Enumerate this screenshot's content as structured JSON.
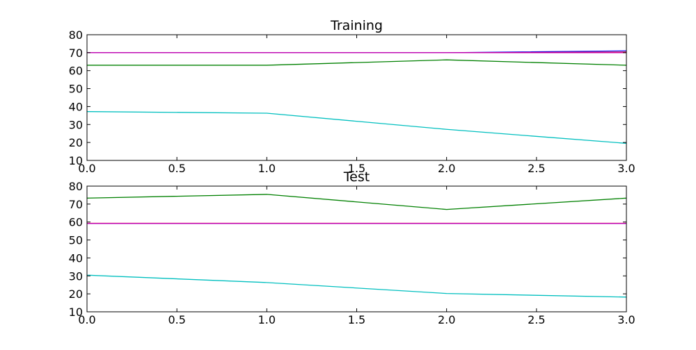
{
  "chart_data": [
    {
      "type": "line",
      "title": "Training",
      "xlabel": "",
      "ylabel": "",
      "xlim": [
        0,
        3
      ],
      "ylim": [
        10,
        80
      ],
      "xticks": [
        "0.0",
        "0.5",
        "1.0",
        "1.5",
        "2.0",
        "2.5",
        "3.0"
      ],
      "yticks": [
        "10",
        "20",
        "30",
        "40",
        "50",
        "60",
        "70",
        "80"
      ],
      "grid": false,
      "x": [
        0,
        1,
        2,
        3
      ],
      "series": [
        {
          "color": "#0000ff",
          "values": [
            70,
            70,
            70,
            71
          ]
        },
        {
          "color": "#008000",
          "values": [
            63,
            63,
            66,
            63
          ]
        },
        {
          "color": "#ff0000",
          "values": [
            70,
            70,
            70,
            70.3
          ]
        },
        {
          "color": "#00bfbf",
          "values": [
            37.2,
            36.3,
            27.3,
            19.5
          ]
        },
        {
          "color": "#bf00bf",
          "values": [
            70,
            70,
            70,
            70
          ]
        }
      ]
    },
    {
      "type": "line",
      "title": "Test",
      "xlabel": "",
      "ylabel": "",
      "xlim": [
        0,
        3
      ],
      "ylim": [
        10,
        80
      ],
      "xticks": [
        "0.0",
        "0.5",
        "1.0",
        "1.5",
        "2.0",
        "2.5",
        "3.0"
      ],
      "yticks": [
        "10",
        "20",
        "30",
        "40",
        "50",
        "60",
        "70",
        "80"
      ],
      "grid": false,
      "x": [
        0,
        1,
        2,
        3
      ],
      "series": [
        {
          "color": "#0000ff",
          "values": [
            59.2,
            59.2,
            59.2,
            59.2
          ]
        },
        {
          "color": "#008000",
          "values": [
            73.3,
            75.4,
            67,
            73.3
          ]
        },
        {
          "color": "#ff0000",
          "values": [
            59.3,
            59.3,
            59.3,
            59.3
          ]
        },
        {
          "color": "#00bfbf",
          "values": [
            30.4,
            26.3,
            20.2,
            18.2
          ]
        },
        {
          "color": "#bf00bf",
          "values": [
            59.2,
            59.2,
            59.2,
            59.2
          ]
        }
      ]
    }
  ]
}
